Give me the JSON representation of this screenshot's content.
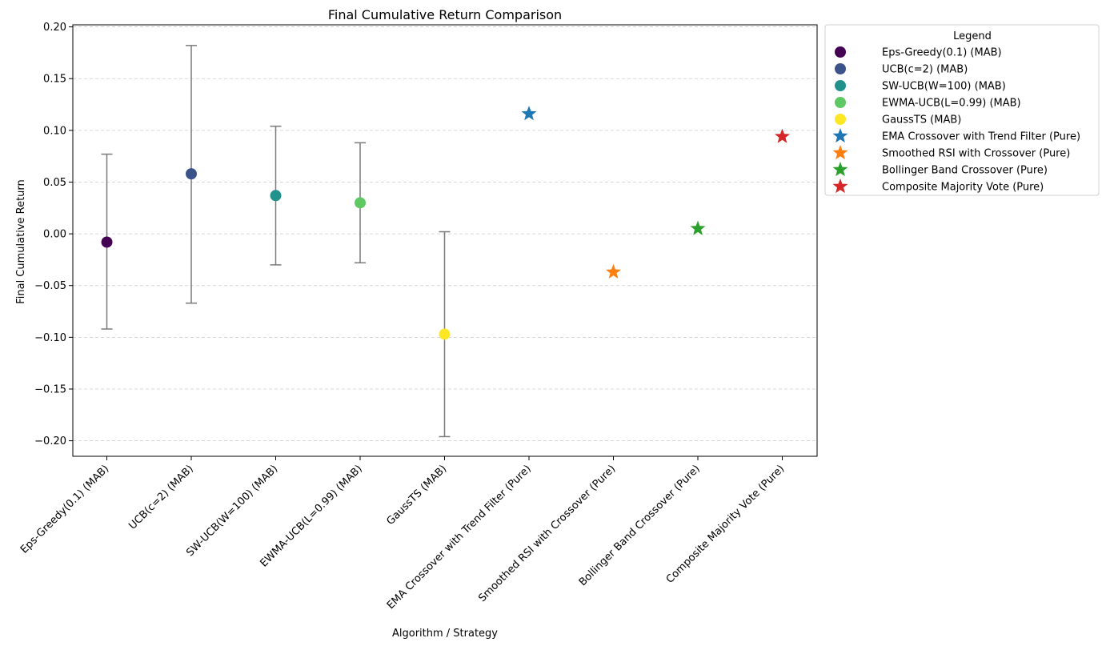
{
  "chart_data": {
    "type": "scatter",
    "title": "Final Cumulative Return Comparison",
    "xlabel": "Algorithm / Strategy",
    "ylabel": "Final Cumulative Return",
    "ylim": [
      -0.215,
      0.202
    ],
    "yticks": [
      {
        "value": 0.2,
        "label": "0.20"
      },
      {
        "value": 0.15,
        "label": "0.15"
      },
      {
        "value": 0.1,
        "label": "0.10"
      },
      {
        "value": 0.05,
        "label": "0.05"
      },
      {
        "value": 0.0,
        "label": "0.00"
      },
      {
        "value": -0.05,
        "label": "−0.05"
      },
      {
        "value": -0.1,
        "label": "−0.10"
      },
      {
        "value": -0.15,
        "label": "−0.15"
      },
      {
        "value": -0.2,
        "label": "−0.20"
      }
    ],
    "grid": "horizontal dashed",
    "legend_title": "Legend",
    "legend_position": "outside-right-top",
    "error_bar_color": "#7a7a7a",
    "series": [
      {
        "name": "Eps-Greedy(0.1) (MAB)",
        "marker": "circle",
        "color": "#440154",
        "value": -0.008,
        "err_low": -0.092,
        "err_high": 0.077
      },
      {
        "name": "UCB(c=2) (MAB)",
        "marker": "circle",
        "color": "#3b528b",
        "value": 0.058,
        "err_low": -0.067,
        "err_high": 0.182
      },
      {
        "name": "SW-UCB(W=100) (MAB)",
        "marker": "circle",
        "color": "#21918c",
        "value": 0.037,
        "err_low": -0.03,
        "err_high": 0.104
      },
      {
        "name": "EWMA-UCB(L=0.99) (MAB)",
        "marker": "circle",
        "color": "#5ec962",
        "value": 0.03,
        "err_low": -0.028,
        "err_high": 0.088
      },
      {
        "name": "GaussTS (MAB)",
        "marker": "circle",
        "color": "#fde725",
        "value": -0.097,
        "err_low": -0.196,
        "err_high": 0.002
      },
      {
        "name": "EMA Crossover with Trend Filter (Pure)",
        "marker": "star",
        "color": "#1f77b4",
        "value": 0.116
      },
      {
        "name": "Smoothed RSI with Crossover (Pure)",
        "marker": "star",
        "color": "#ff7f0e",
        "value": -0.037
      },
      {
        "name": "Bollinger Band Crossover (Pure)",
        "marker": "star",
        "color": "#2ca02c",
        "value": 0.005
      },
      {
        "name": "Composite Majority Vote (Pure)",
        "marker": "star",
        "color": "#d62728",
        "value": 0.094
      }
    ]
  }
}
